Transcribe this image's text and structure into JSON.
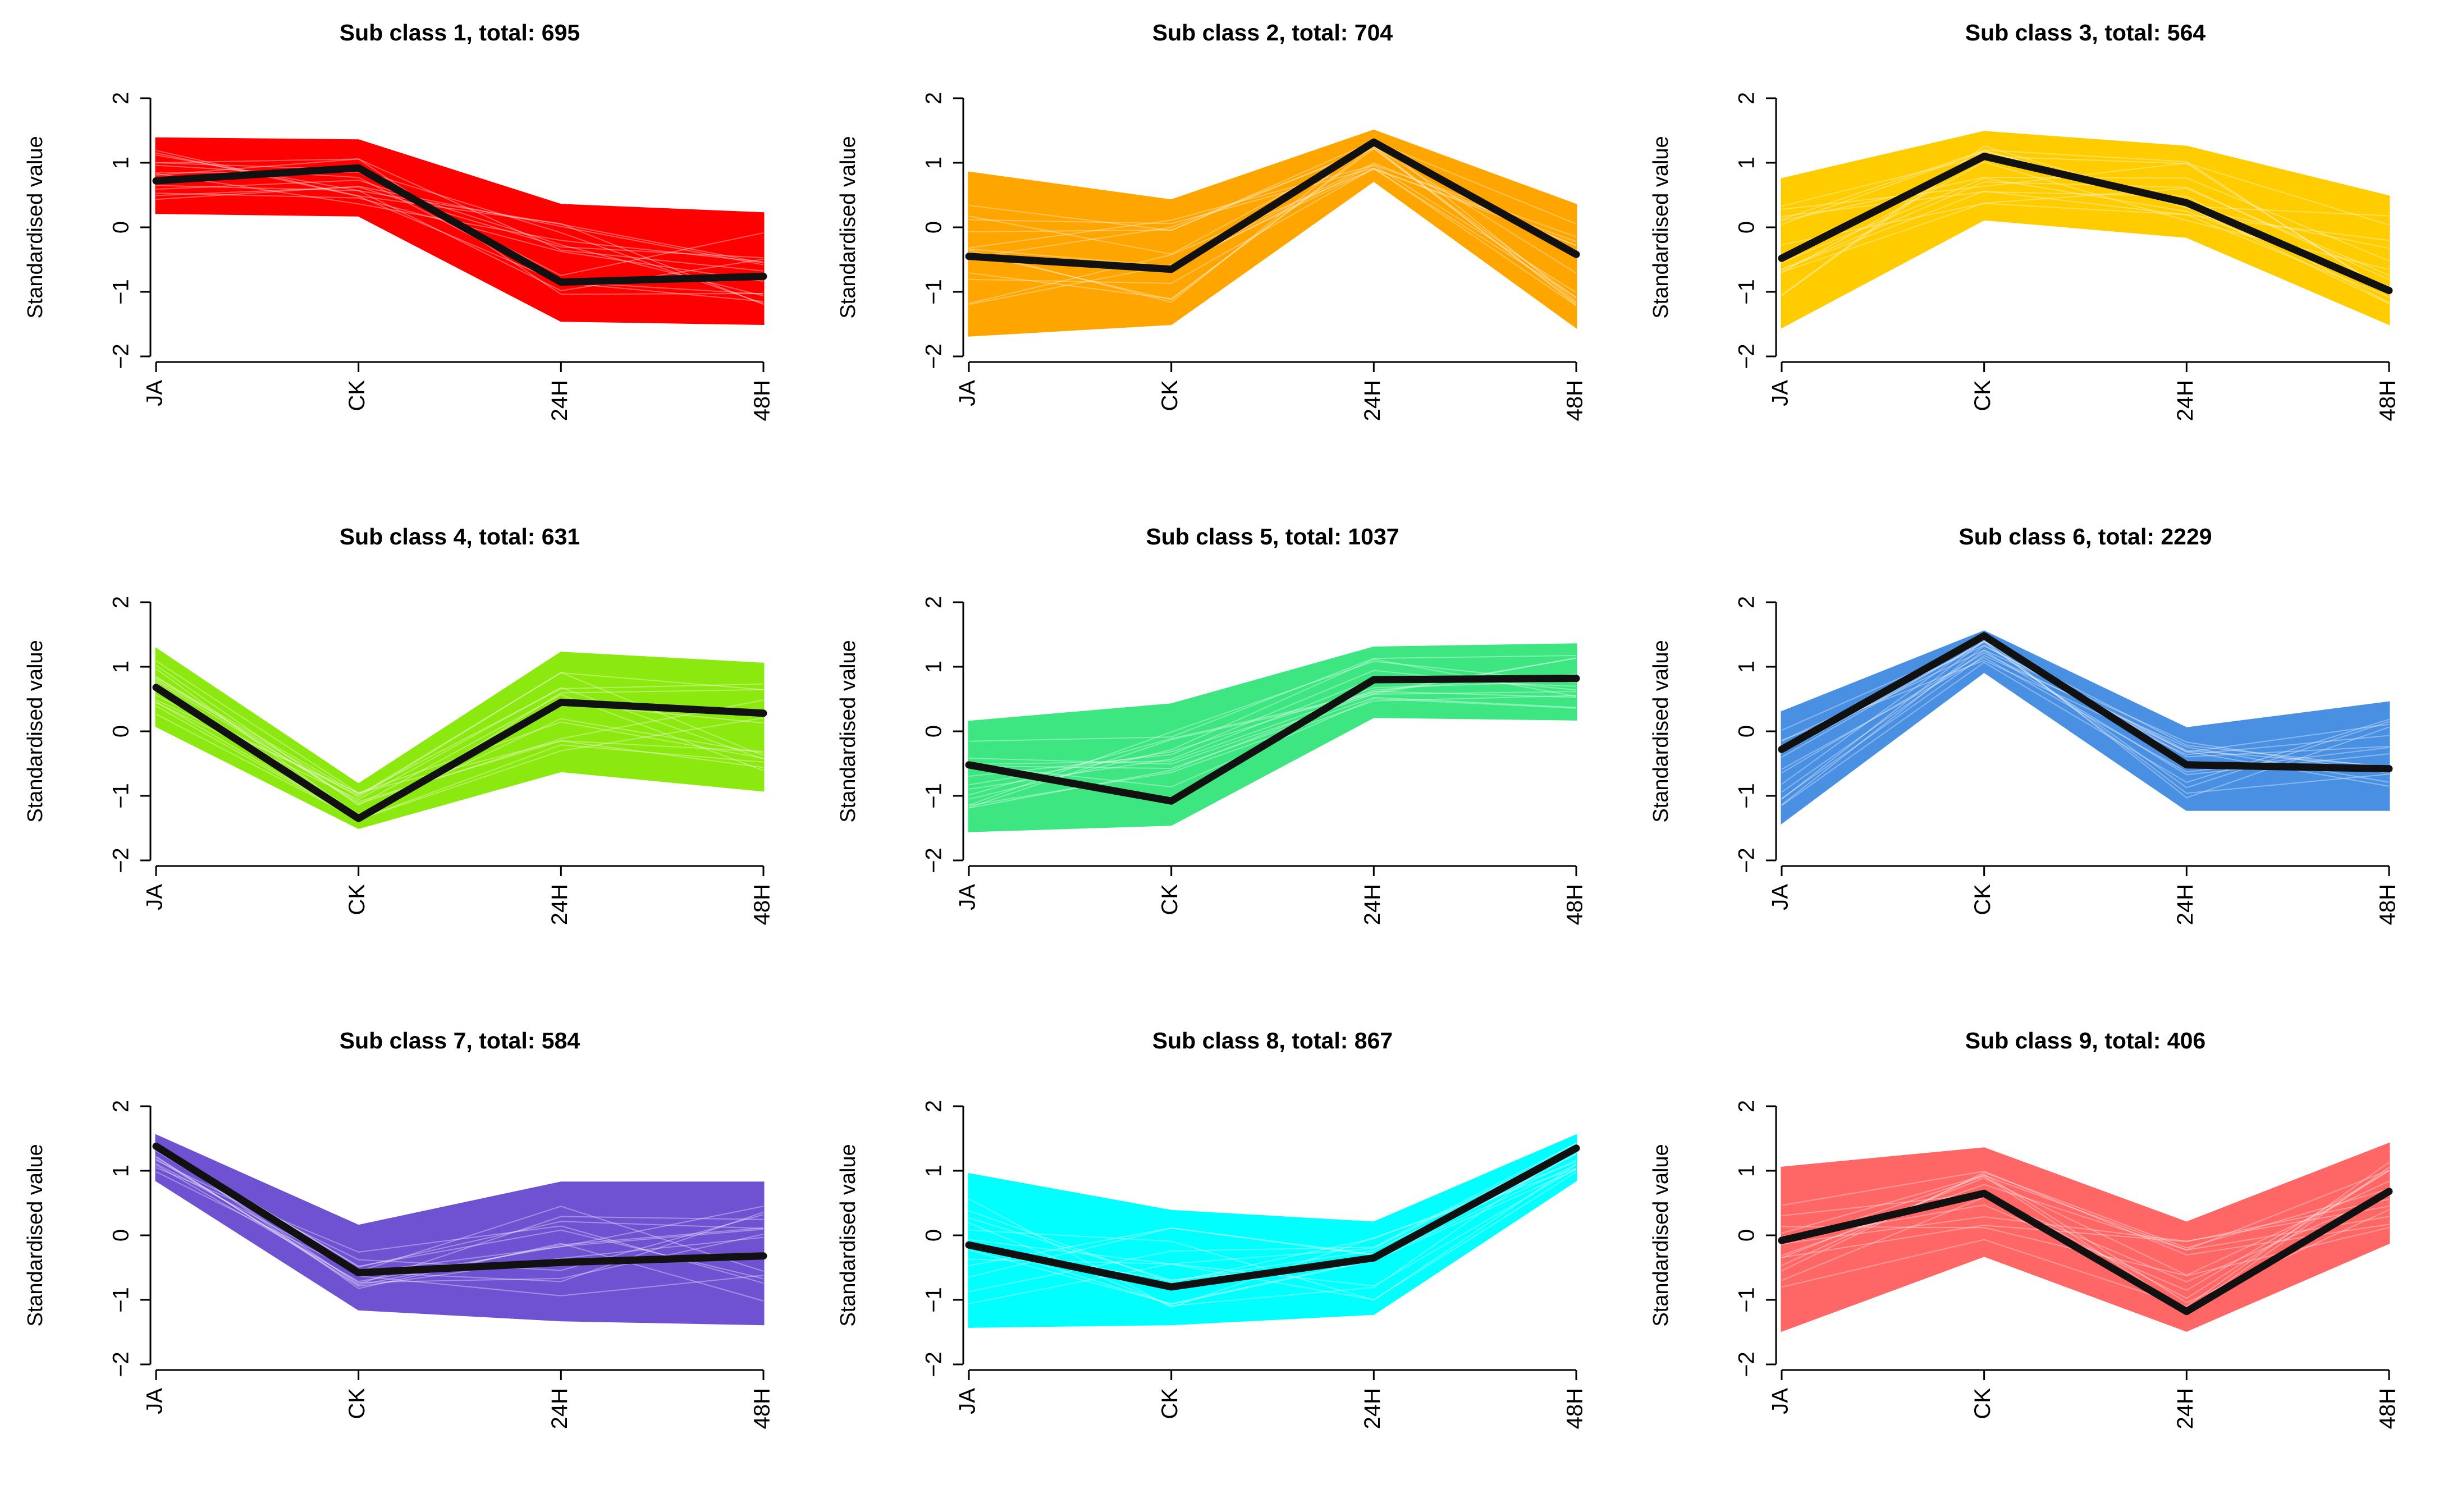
{
  "chart_data": [
    {
      "type": "line",
      "title": "Sub class 1, total: 695",
      "ylabel": "Standardised value",
      "categories": [
        "JA",
        "CK",
        "24H",
        "48H"
      ],
      "yticks": [
        -2,
        -1,
        0,
        1,
        2
      ],
      "ylim": [
        -2,
        2
      ],
      "color": "#FF0000",
      "median": [
        0.72,
        0.92,
        -0.85,
        -0.76
      ],
      "upper": [
        1.38,
        1.35,
        0.35,
        0.22
      ],
      "lower": [
        0.22,
        0.18,
        -1.45,
        -1.5
      ]
    },
    {
      "type": "line",
      "title": "Sub class 2, total: 704",
      "ylabel": "Standardised value",
      "categories": [
        "JA",
        "CK",
        "24H",
        "48H"
      ],
      "yticks": [
        -2,
        -1,
        0,
        1,
        2
      ],
      "ylim": [
        -2,
        2
      ],
      "color": "#FFA500",
      "median": [
        -0.45,
        -0.65,
        1.32,
        -0.42
      ],
      "upper": [
        0.85,
        0.42,
        1.5,
        0.35
      ],
      "lower": [
        -1.68,
        -1.5,
        0.72,
        -1.55
      ]
    },
    {
      "type": "line",
      "title": "Sub class 3, total: 564",
      "ylabel": "Standardised value",
      "categories": [
        "JA",
        "CK",
        "24H",
        "48H"
      ],
      "yticks": [
        -2,
        -1,
        0,
        1,
        2
      ],
      "ylim": [
        -2,
        2
      ],
      "color": "#FFCC00",
      "median": [
        -0.48,
        1.1,
        0.38,
        -0.98
      ],
      "upper": [
        0.75,
        1.48,
        1.25,
        0.48
      ],
      "lower": [
        -1.55,
        0.12,
        -0.15,
        -1.5
      ]
    },
    {
      "type": "line",
      "title": "Sub class 4, total: 631",
      "ylabel": "Standardised value",
      "categories": [
        "JA",
        "CK",
        "24H",
        "48H"
      ],
      "yticks": [
        -2,
        -1,
        0,
        1,
        2
      ],
      "ylim": [
        -2,
        2
      ],
      "color": "#8CE90F",
      "median": [
        0.68,
        -1.35,
        0.45,
        0.28
      ],
      "upper": [
        1.28,
        -0.82,
        1.22,
        1.05
      ],
      "lower": [
        0.08,
        -1.5,
        -0.62,
        -0.92
      ]
    },
    {
      "type": "line",
      "title": "Sub class 5, total: 1037",
      "ylabel": "Standardised value",
      "categories": [
        "JA",
        "CK",
        "24H",
        "48H"
      ],
      "yticks": [
        -2,
        -1,
        0,
        1,
        2
      ],
      "ylim": [
        -2,
        2
      ],
      "color": "#3DE681",
      "median": [
        -0.52,
        -1.08,
        0.8,
        0.82
      ],
      "upper": [
        0.15,
        0.42,
        1.3,
        1.35
      ],
      "lower": [
        -1.55,
        -1.45,
        0.22,
        0.18
      ]
    },
    {
      "type": "line",
      "title": "Sub class 6, total: 2229",
      "ylabel": "Standardised value",
      "categories": [
        "JA",
        "CK",
        "24H",
        "48H"
      ],
      "yticks": [
        -2,
        -1,
        0,
        1,
        2
      ],
      "ylim": [
        -2,
        2
      ],
      "color": "#4A90E2",
      "median": [
        -0.28,
        1.48,
        -0.52,
        -0.58
      ],
      "upper": [
        0.3,
        1.55,
        0.05,
        0.45
      ],
      "lower": [
        -1.42,
        0.92,
        -1.22,
        -1.22
      ]
    },
    {
      "type": "line",
      "title": "Sub class 7, total: 584",
      "ylabel": "Standardised value",
      "categories": [
        "JA",
        "CK",
        "24H",
        "48H"
      ],
      "yticks": [
        -2,
        -1,
        0,
        1,
        2
      ],
      "ylim": [
        -2,
        2
      ],
      "color": "#6F52D2",
      "median": [
        1.38,
        -0.58,
        -0.42,
        -0.32
      ],
      "upper": [
        1.55,
        0.15,
        0.82,
        0.82
      ],
      "lower": [
        0.85,
        -1.15,
        -1.32,
        -1.38
      ]
    },
    {
      "type": "line",
      "title": "Sub class 8, total: 867",
      "ylabel": "Standardised value",
      "categories": [
        "JA",
        "CK",
        "24H",
        "48H"
      ],
      "yticks": [
        -2,
        -1,
        0,
        1,
        2
      ],
      "ylim": [
        -2,
        2
      ],
      "color": "#00FFFF",
      "median": [
        -0.15,
        -0.8,
        -0.35,
        1.35
      ],
      "upper": [
        0.95,
        0.38,
        0.2,
        1.55
      ],
      "lower": [
        -1.42,
        -1.38,
        -1.22,
        0.85
      ]
    },
    {
      "type": "line",
      "title": "Sub class 9, total: 406",
      "ylabel": "Standardised value",
      "categories": [
        "JA",
        "CK",
        "24H",
        "48H"
      ],
      "yticks": [
        -2,
        -1,
        0,
        1,
        2
      ],
      "ylim": [
        -2,
        2
      ],
      "color": "#FF6666",
      "median": [
        -0.08,
        0.65,
        -1.18,
        0.68
      ],
      "upper": [
        1.05,
        1.35,
        0.2,
        1.42
      ],
      "lower": [
        -1.48,
        -0.32,
        -1.48,
        -0.12
      ]
    }
  ]
}
